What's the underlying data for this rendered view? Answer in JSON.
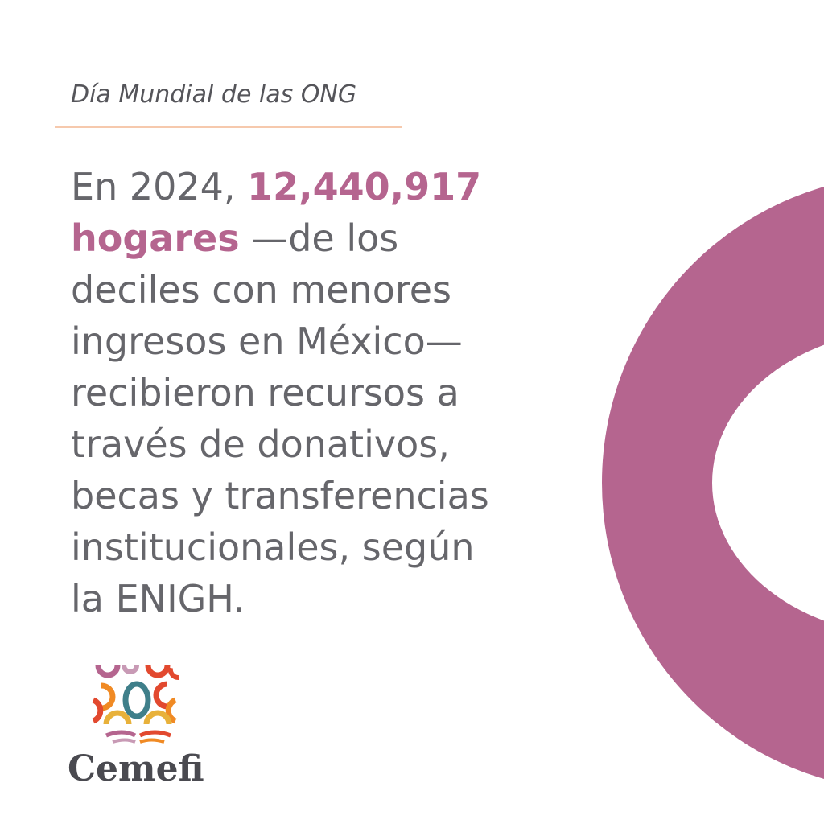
{
  "header": {
    "title": "Día Mundial de las ONG"
  },
  "body": {
    "lines": [
      [
        {
          "text": "En 2024, ",
          "emphasis": false
        },
        {
          "text": "12,440,917",
          "emphasis": true
        }
      ],
      [
        {
          "text": "hogares",
          "emphasis": true
        },
        {
          "text": " —de los",
          "emphasis": false
        }
      ],
      [
        {
          "text": "deciles con menores",
          "emphasis": false
        }
      ],
      [
        {
          "text": "ingresos en México—",
          "emphasis": false
        }
      ],
      [
        {
          "text": "recibieron recursos a",
          "emphasis": false
        }
      ],
      [
        {
          "text": "través de donativos,",
          "emphasis": false
        }
      ],
      [
        {
          "text": "becas y transferencias",
          "emphasis": false
        }
      ],
      [
        {
          "text": "institucionales, según",
          "emphasis": false
        }
      ],
      [
        {
          "text": "la ENIGH.",
          "emphasis": false
        }
      ]
    ]
  },
  "logo": {
    "name": "Cemefi"
  }
}
